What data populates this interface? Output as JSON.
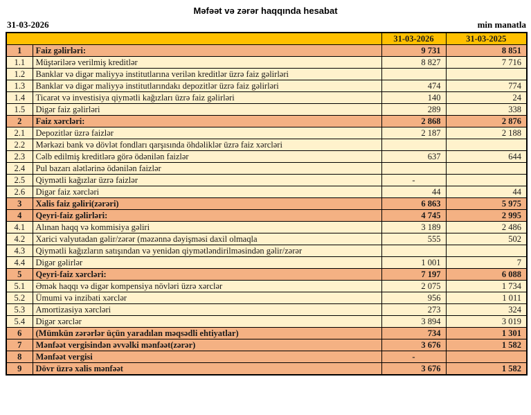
{
  "page": {
    "title": "Məfəət və zərər haqqında hesabat",
    "report_date": "31-03-2026",
    "unit_label": "min manatla"
  },
  "colors": {
    "header_bg": "#FFC000",
    "section_bg": "#F4B183",
    "item_bg": "#FFF2CC",
    "border": "#000000"
  },
  "table": {
    "columns": [
      "31-03-2026",
      "31-03-2025"
    ],
    "rows": [
      {
        "num": "1",
        "label": "Faiz gəlirləri:",
        "v1": "9 731",
        "v2": "8 851",
        "style": "section"
      },
      {
        "num": "1.1",
        "label": "Müştərilərə verilmiş kreditlər",
        "v1": "8 827",
        "v2": "7 716",
        "style": "item"
      },
      {
        "num": "1.2",
        "label": "Banklar və digər maliyyə institutlarına verilən kreditlər üzrə faiz gəlirləri",
        "v1": "",
        "v2": "",
        "style": "item"
      },
      {
        "num": "1.3",
        "label": "Banklar və digər maliyyə institutlarındakı depozitlər üzrə faiz gəlirləri",
        "v1": "474",
        "v2": "774",
        "style": "item"
      },
      {
        "num": "1.4",
        "label": "Ticarət və investisiya qiymətli kağızları üzrə faiz gəlirləri",
        "v1": "140",
        "v2": "24",
        "style": "item"
      },
      {
        "num": "1.5",
        "label": "Digər faiz gəlirləri",
        "v1": "289",
        "v2": "338",
        "style": "item"
      },
      {
        "num": "2",
        "label": "Faiz xərcləri:",
        "v1": "2 868",
        "v2": "2 876",
        "style": "section"
      },
      {
        "num": "2.1",
        "label": "Depozitlər üzrə faizlər",
        "v1": "2 187",
        "v2": "2 188",
        "style": "item"
      },
      {
        "num": "2.2",
        "label": "Mərkəzi bank və dövlət fondları qarşısında öhdəliklər üzrə faiz xərcləri",
        "v1": "",
        "v2": "",
        "style": "item"
      },
      {
        "num": "2.3",
        "label": "Cəlb edilmiş kreditlərə görə ödənilən faizlər",
        "v1": "637",
        "v2": "644",
        "style": "item"
      },
      {
        "num": "2.4",
        "label": "Pul bazarı alətlərinə ödənilən faizlər",
        "v1": "",
        "v2": "",
        "style": "item"
      },
      {
        "num": "2.5",
        "label": "Qiymətli kağızlar üzrə faizlər",
        "v1": "-",
        "v2": "",
        "style": "item"
      },
      {
        "num": "2.6",
        "label": "Digər faiz xərcləri",
        "v1": "44",
        "v2": "44",
        "style": "item"
      },
      {
        "num": "3",
        "label": "Xalis faiz gəliri(zərəri)",
        "v1": "6 863",
        "v2": "5 975",
        "style": "section"
      },
      {
        "num": "4",
        "label": "Qeyri-faiz gəlirləri:",
        "v1": "4 745",
        "v2": "2 995",
        "style": "section"
      },
      {
        "num": "4.1",
        "label": "Alınan haqq və kommisiya gəliri",
        "v1": "3 189",
        "v2": "2 486",
        "style": "item"
      },
      {
        "num": "4.2",
        "label": "Xarici valyutadan gəlir/zərər (məzənnə dəyişməsi daxil olmaqla",
        "v1": "555",
        "v2": "502",
        "style": "item"
      },
      {
        "num": "4.3",
        "label": "Qiymətli kağızların satışından və yenidən qiymətləndirilməsindən gəlir/zərər",
        "v1": "",
        "v2": "",
        "style": "item"
      },
      {
        "num": "4.4",
        "label": "Digər gəlirlər",
        "v1": "1 001",
        "v2": "7",
        "style": "item"
      },
      {
        "num": "5",
        "label": "Qeyri-faiz xərcləri:",
        "v1": "7 197",
        "v2": "6 088",
        "style": "section"
      },
      {
        "num": "5.1",
        "label": "Əmək haqqı və digər kompensiya növləri üzrə xərclər",
        "v1": "2 075",
        "v2": "1 734",
        "style": "item"
      },
      {
        "num": "5.2",
        "label": "Ümumi və inzibati xərclər",
        "v1": "956",
        "v2": "1 011",
        "style": "item"
      },
      {
        "num": "5.3",
        "label": "Amortizasiya xərcləri",
        "v1": "273",
        "v2": "324",
        "style": "item"
      },
      {
        "num": "5.4",
        "label": "Digər xərclər",
        "v1": "3 894",
        "v2": "3 019",
        "style": "item"
      },
      {
        "num": "6",
        "label": "(Mümkün zərərlər üçün yaradılan məqsədli ehtiyatlar)",
        "v1": "734",
        "v2": "1 301",
        "style": "section"
      },
      {
        "num": "7",
        "label": "Mənfəət vergisindən əvvəlki mənfəət(zərər)",
        "v1": "3 676",
        "v2": "1 582",
        "style": "section"
      },
      {
        "num": "8",
        "label": "Mənfəət vergisi",
        "v1": "-",
        "v2": "",
        "style": "section"
      },
      {
        "num": "9",
        "label": "Dövr üzrə xalis mənfəət",
        "v1": "3 676",
        "v2": "1 582",
        "style": "section"
      }
    ]
  }
}
